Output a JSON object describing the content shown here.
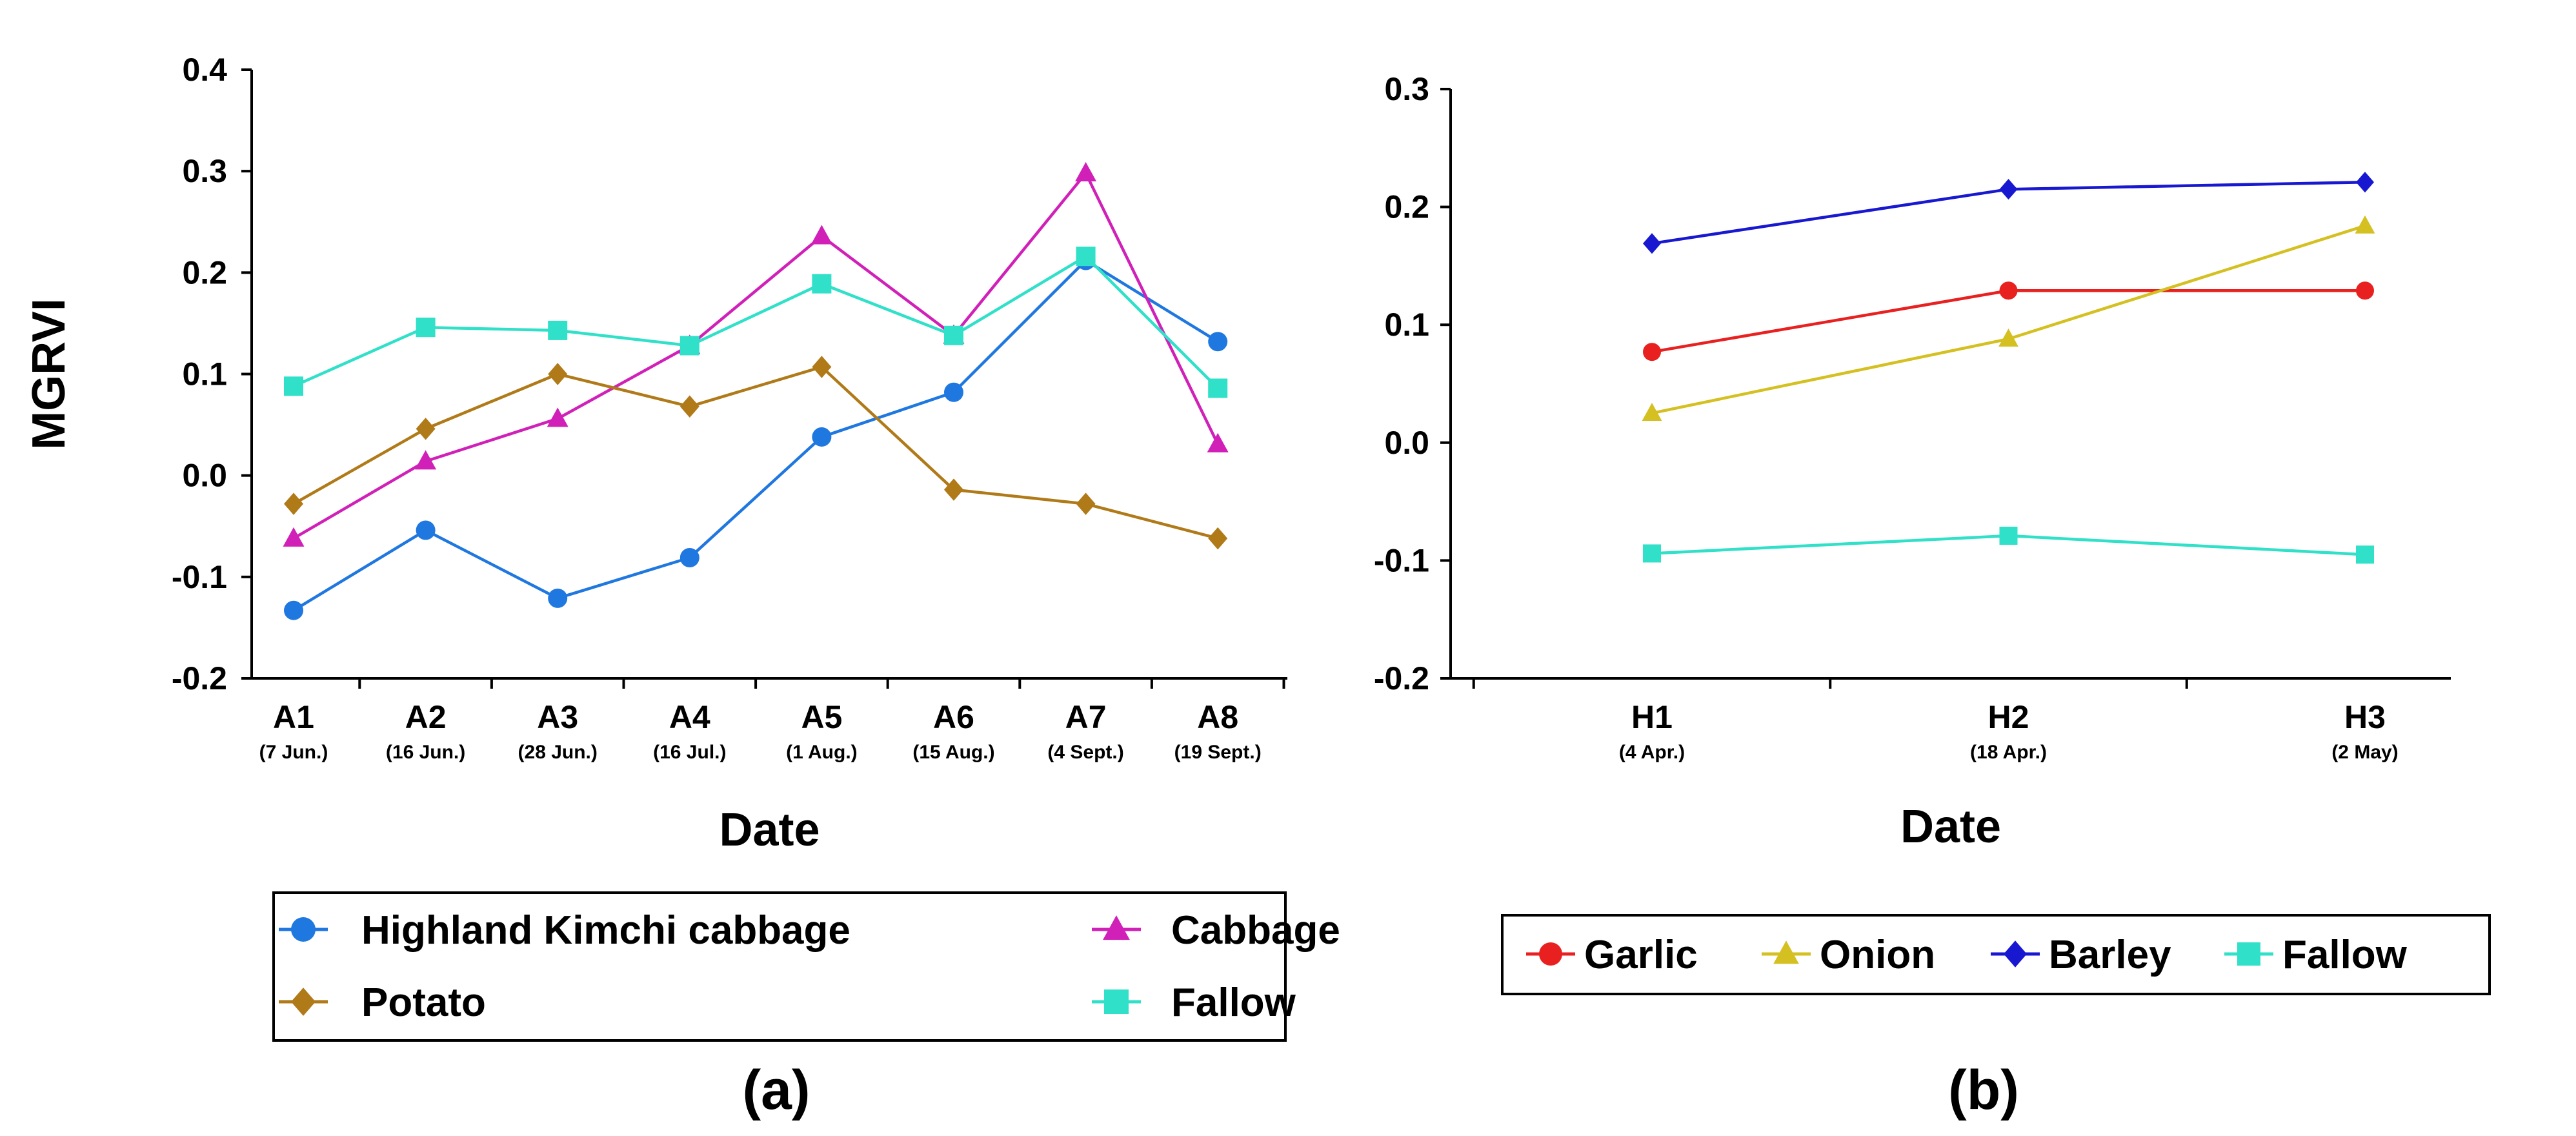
{
  "chart_data": [
    {
      "type": "line",
      "panel_label": "(a)",
      "title": "",
      "xlabel": "Date",
      "ylabel": "MGRVI",
      "ylim": [
        -0.2,
        0.4
      ],
      "yticks": [
        "0.4",
        "0.3",
        "0.2",
        "0.1",
        "0.0",
        "-0.1",
        "-0.2"
      ],
      "grid": false,
      "legend_position": "bottom",
      "categories": [
        "A1",
        "A2",
        "A3",
        "A4",
        "A5",
        "A6",
        "A7",
        "A8"
      ],
      "category_dates": [
        "(7 Jun.)",
        "(16 Jun.)",
        "(28 Jun.)",
        "(16 Jul.)",
        "(1 Aug.)",
        "(15 Aug.)",
        "(4 Sept.)",
        "(19 Sept.)"
      ],
      "series": [
        {
          "name": "Highland Kimchi cabbage",
          "color": "#1f77e0",
          "marker": "circle",
          "values": [
            -0.133,
            -0.054,
            -0.121,
            -0.081,
            0.038,
            0.082,
            0.212,
            0.132
          ]
        },
        {
          "name": "Cabbage",
          "color": "#d020b8",
          "marker": "triangle",
          "values": [
            -0.062,
            0.014,
            0.056,
            0.128,
            0.236,
            0.138,
            0.298,
            0.031
          ]
        },
        {
          "name": "Potato",
          "color": "#b07a18",
          "marker": "diamond",
          "values": [
            -0.028,
            0.046,
            0.1,
            0.068,
            0.107,
            -0.014,
            -0.028,
            -0.062
          ]
        },
        {
          "name": "Fallow",
          "color": "#30e0c8",
          "marker": "square",
          "values": [
            0.088,
            0.146,
            0.143,
            0.128,
            0.189,
            0.138,
            0.216,
            0.086
          ]
        }
      ]
    },
    {
      "type": "line",
      "panel_label": "(b)",
      "title": "",
      "xlabel": "Date",
      "ylabel": "",
      "ylim": [
        -0.2,
        0.3
      ],
      "yticks": [
        "0.3",
        "0.2",
        "0.1",
        "0.0",
        "-0.1",
        "-0.2"
      ],
      "grid": false,
      "legend_position": "bottom",
      "categories": [
        "H1",
        "H2",
        "H3"
      ],
      "category_dates": [
        "(4 Apr.)",
        "(18 Apr.)",
        "(2 May)"
      ],
      "series": [
        {
          "name": "Garlic",
          "color": "#e82020",
          "marker": "circle",
          "values": [
            0.077,
            0.129,
            0.129
          ]
        },
        {
          "name": "Onion",
          "color": "#d4c020",
          "marker": "triangle",
          "values": [
            0.025,
            0.088,
            0.184
          ]
        },
        {
          "name": "Barley",
          "color": "#1818d0",
          "marker": "diamond",
          "values": [
            0.169,
            0.215,
            0.221
          ]
        },
        {
          "name": "Fallow",
          "color": "#30e0c8",
          "marker": "square",
          "values": [
            -0.094,
            -0.079,
            -0.095
          ]
        }
      ]
    }
  ]
}
